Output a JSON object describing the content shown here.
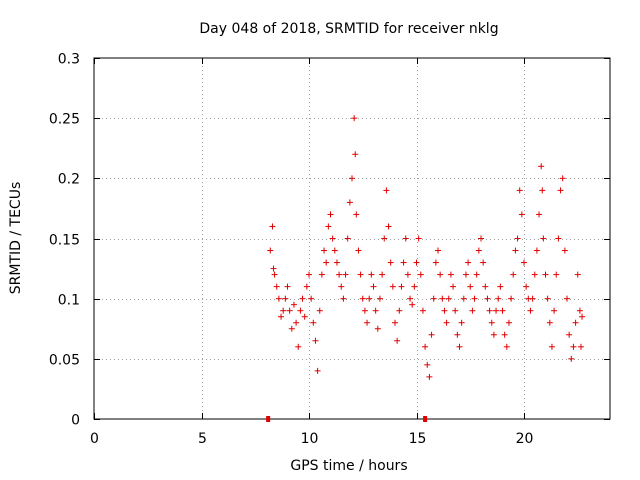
{
  "chart_data": {
    "type": "scatter",
    "title": "Day 048 of 2018, SRMTID for receiver nklg",
    "xlabel": "GPS time / hours",
    "ylabel": "SRMTID / TECUs",
    "xlim": [
      0,
      24
    ],
    "ylim": [
      0,
      0.3
    ],
    "xticks": [
      0,
      5,
      10,
      15,
      20
    ],
    "yticks": [
      0,
      0.05,
      0.1,
      0.15,
      0.2,
      0.25,
      0.3
    ],
    "xtick_labels": [
      "0",
      "5",
      "10",
      "15",
      "20"
    ],
    "ytick_labels": [
      "0",
      "0.05",
      "0.1",
      "0.15",
      "0.2",
      "0.25",
      "0.3"
    ],
    "grid": true,
    "marker": "+",
    "series_color": "#e00000",
    "x_axis_markers": [
      8.1,
      15.4
    ],
    "series": [
      {
        "points": [
          [
            8.2,
            0.14
          ],
          [
            8.3,
            0.16
          ],
          [
            8.35,
            0.125
          ],
          [
            8.4,
            0.12
          ],
          [
            8.5,
            0.11
          ],
          [
            8.6,
            0.1
          ],
          [
            8.7,
            0.085
          ],
          [
            8.8,
            0.09
          ],
          [
            8.9,
            0.1
          ],
          [
            9.0,
            0.11
          ],
          [
            9.1,
            0.09
          ],
          [
            9.2,
            0.075
          ],
          [
            9.3,
            0.095
          ],
          [
            9.4,
            0.08
          ],
          [
            9.5,
            0.06
          ],
          [
            9.6,
            0.09
          ],
          [
            9.7,
            0.1
          ],
          [
            9.8,
            0.085
          ],
          [
            9.9,
            0.11
          ],
          [
            10.0,
            0.12
          ],
          [
            10.1,
            0.1
          ],
          [
            10.2,
            0.08
          ],
          [
            10.3,
            0.065
          ],
          [
            10.4,
            0.04
          ],
          [
            10.5,
            0.09
          ],
          [
            10.6,
            0.12
          ],
          [
            10.7,
            0.14
          ],
          [
            10.8,
            0.13
          ],
          [
            10.9,
            0.16
          ],
          [
            11.0,
            0.17
          ],
          [
            11.1,
            0.15
          ],
          [
            11.2,
            0.14
          ],
          [
            11.3,
            0.13
          ],
          [
            11.4,
            0.12
          ],
          [
            11.5,
            0.11
          ],
          [
            11.6,
            0.1
          ],
          [
            11.7,
            0.12
          ],
          [
            11.8,
            0.15
          ],
          [
            11.9,
            0.18
          ],
          [
            12.0,
            0.2
          ],
          [
            12.1,
            0.25
          ],
          [
            12.15,
            0.22
          ],
          [
            12.2,
            0.17
          ],
          [
            12.3,
            0.14
          ],
          [
            12.4,
            0.12
          ],
          [
            12.5,
            0.1
          ],
          [
            12.6,
            0.09
          ],
          [
            12.7,
            0.08
          ],
          [
            12.8,
            0.1
          ],
          [
            12.9,
            0.12
          ],
          [
            13.0,
            0.11
          ],
          [
            13.1,
            0.09
          ],
          [
            13.2,
            0.075
          ],
          [
            13.3,
            0.1
          ],
          [
            13.4,
            0.12
          ],
          [
            13.5,
            0.15
          ],
          [
            13.6,
            0.19
          ],
          [
            13.7,
            0.16
          ],
          [
            13.8,
            0.13
          ],
          [
            13.9,
            0.11
          ],
          [
            14.0,
            0.08
          ],
          [
            14.1,
            0.065
          ],
          [
            14.2,
            0.09
          ],
          [
            14.3,
            0.11
          ],
          [
            14.4,
            0.13
          ],
          [
            14.5,
            0.15
          ],
          [
            14.6,
            0.12
          ],
          [
            14.7,
            0.1
          ],
          [
            14.8,
            0.095
          ],
          [
            14.9,
            0.11
          ],
          [
            15.0,
            0.13
          ],
          [
            15.1,
            0.15
          ],
          [
            15.2,
            0.12
          ],
          [
            15.3,
            0.09
          ],
          [
            15.4,
            0.06
          ],
          [
            15.5,
            0.045
          ],
          [
            15.6,
            0.035
          ],
          [
            15.7,
            0.07
          ],
          [
            15.8,
            0.1
          ],
          [
            15.9,
            0.13
          ],
          [
            16.0,
            0.14
          ],
          [
            16.1,
            0.12
          ],
          [
            16.2,
            0.1
          ],
          [
            16.3,
            0.09
          ],
          [
            16.4,
            0.08
          ],
          [
            16.5,
            0.1
          ],
          [
            16.6,
            0.12
          ],
          [
            16.7,
            0.11
          ],
          [
            16.8,
            0.09
          ],
          [
            16.9,
            0.07
          ],
          [
            17.0,
            0.06
          ],
          [
            17.1,
            0.08
          ],
          [
            17.2,
            0.1
          ],
          [
            17.3,
            0.12
          ],
          [
            17.4,
            0.13
          ],
          [
            17.5,
            0.11
          ],
          [
            17.6,
            0.09
          ],
          [
            17.7,
            0.1
          ],
          [
            17.8,
            0.12
          ],
          [
            17.9,
            0.14
          ],
          [
            18.0,
            0.15
          ],
          [
            18.1,
            0.13
          ],
          [
            18.2,
            0.11
          ],
          [
            18.3,
            0.1
          ],
          [
            18.4,
            0.09
          ],
          [
            18.5,
            0.08
          ],
          [
            18.6,
            0.07
          ],
          [
            18.7,
            0.09
          ],
          [
            18.8,
            0.1
          ],
          [
            18.9,
            0.11
          ],
          [
            19.0,
            0.09
          ],
          [
            19.1,
            0.07
          ],
          [
            19.2,
            0.06
          ],
          [
            19.3,
            0.08
          ],
          [
            19.4,
            0.1
          ],
          [
            19.5,
            0.12
          ],
          [
            19.6,
            0.14
          ],
          [
            19.7,
            0.15
          ],
          [
            19.8,
            0.19
          ],
          [
            19.9,
            0.17
          ],
          [
            20.0,
            0.13
          ],
          [
            20.1,
            0.11
          ],
          [
            20.2,
            0.1
          ],
          [
            20.3,
            0.09
          ],
          [
            20.4,
            0.1
          ],
          [
            20.5,
            0.12
          ],
          [
            20.6,
            0.14
          ],
          [
            20.7,
            0.17
          ],
          [
            20.8,
            0.21
          ],
          [
            20.85,
            0.19
          ],
          [
            20.9,
            0.15
          ],
          [
            21.0,
            0.12
          ],
          [
            21.1,
            0.1
          ],
          [
            21.2,
            0.08
          ],
          [
            21.3,
            0.06
          ],
          [
            21.4,
            0.09
          ],
          [
            21.5,
            0.12
          ],
          [
            21.6,
            0.15
          ],
          [
            21.7,
            0.19
          ],
          [
            21.8,
            0.2
          ],
          [
            21.9,
            0.14
          ],
          [
            22.0,
            0.1
          ],
          [
            22.1,
            0.07
          ],
          [
            22.2,
            0.05
          ],
          [
            22.3,
            0.06
          ],
          [
            22.4,
            0.08
          ],
          [
            22.5,
            0.12
          ],
          [
            22.6,
            0.09
          ],
          [
            22.65,
            0.06
          ],
          [
            22.7,
            0.085
          ]
        ]
      }
    ]
  }
}
